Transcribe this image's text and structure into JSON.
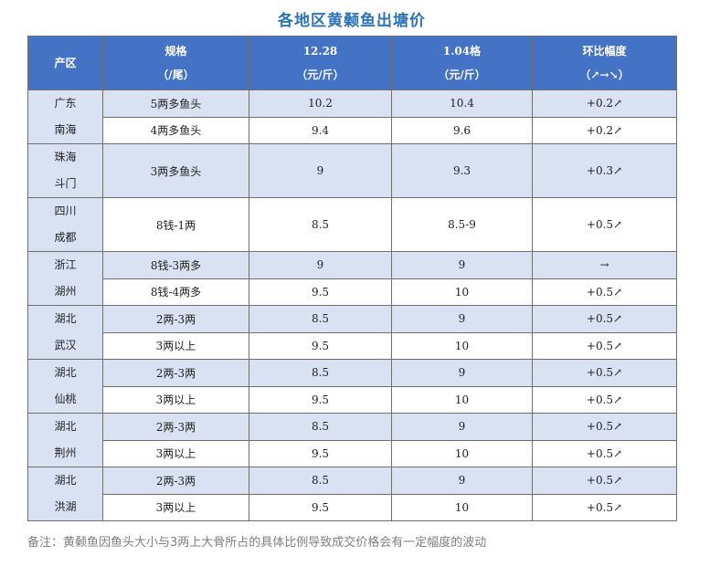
{
  "title": "各地区黄颡鱼出塘价",
  "header": {
    "region": "产区",
    "spec_line1": "规格",
    "spec_line2": "（/尾）",
    "p1_line1": "12.28",
    "p1_line2": "（元/斤）",
    "p2_line1": "1.04格",
    "p2_line2": "（元/斤）",
    "change_line1": "环比幅度",
    "change_line2": "（↗→↘）"
  },
  "groups": [
    {
      "region_line1": "广东",
      "region_line2": "南海",
      "rows": [
        {
          "spec": "5两多鱼头",
          "p1": "10.2",
          "p2": "10.4",
          "change": "+0.2↗",
          "trend": "up"
        },
        {
          "spec": "4两多鱼头",
          "p1": "9.4",
          "p2": "9.6",
          "change": "+0.2↗",
          "trend": "up"
        }
      ]
    },
    {
      "region_line1": "珠海",
      "region_line2": "斗门",
      "rows": [
        {
          "spec": "3两多鱼头",
          "p1": "9",
          "p2": "9.3",
          "change": "+0.3↗",
          "trend": "up"
        }
      ]
    },
    {
      "region_line1": "四川",
      "region_line2": "成都",
      "rows": [
        {
          "spec": "8钱-1两",
          "p1": "8.5",
          "p2": "8.5-9",
          "change": "+0.5↗",
          "trend": "up"
        }
      ]
    },
    {
      "region_line1": "浙江",
      "region_line2": "湖州",
      "rows": [
        {
          "spec": "8钱-3两多",
          "p1": "9",
          "p2": "9",
          "change": "→",
          "trend": "flat"
        },
        {
          "spec": "8钱-4两多",
          "p1": "9.5",
          "p2": "10",
          "change": "+0.5↗",
          "trend": "up"
        }
      ]
    },
    {
      "region_line1": "湖北",
      "region_line2": "武汉",
      "rows": [
        {
          "spec": "2两-3两",
          "p1": "8.5",
          "p2": "9",
          "change": "+0.5↗",
          "trend": "up"
        },
        {
          "spec": "3两以上",
          "p1": "9.5",
          "p2": "10",
          "change": "+0.5↗",
          "trend": "up"
        }
      ]
    },
    {
      "region_line1": "湖北",
      "region_line2": "仙桃",
      "rows": [
        {
          "spec": "2两-3两",
          "p1": "8.5",
          "p2": "9",
          "change": "+0.5↗",
          "trend": "up"
        },
        {
          "spec": "3两以上",
          "p1": "9.5",
          "p2": "10",
          "change": "+0.5↗",
          "trend": "up"
        }
      ]
    },
    {
      "region_line1": "湖北",
      "region_line2": "荆州",
      "rows": [
        {
          "spec": "2两-3两",
          "p1": "8.5",
          "p2": "9",
          "change": "+0.5↗",
          "trend": "up"
        },
        {
          "spec": "3两以上",
          "p1": "9.5",
          "p2": "10",
          "change": "+0.5↗",
          "trend": "up"
        }
      ]
    },
    {
      "region_line1": "湖北",
      "region_line2": "洪湖",
      "rows": [
        {
          "spec": "2两-3两",
          "p1": "8.5",
          "p2": "9",
          "change": "+0.5↗",
          "trend": "up"
        },
        {
          "spec": "3两以上",
          "p1": "9.5",
          "p2": "10",
          "change": "+0.5↗",
          "trend": "up"
        }
      ]
    }
  ],
  "note": "备注：黄颡鱼因鱼头大小与3两上大骨所占的具体比例导致成交价格会有一定幅度的波动",
  "colors": {
    "header_bg": "#4472c4",
    "band_bg": "#d9e2f3",
    "up": "#e00000",
    "title": "#2e74b5"
  }
}
